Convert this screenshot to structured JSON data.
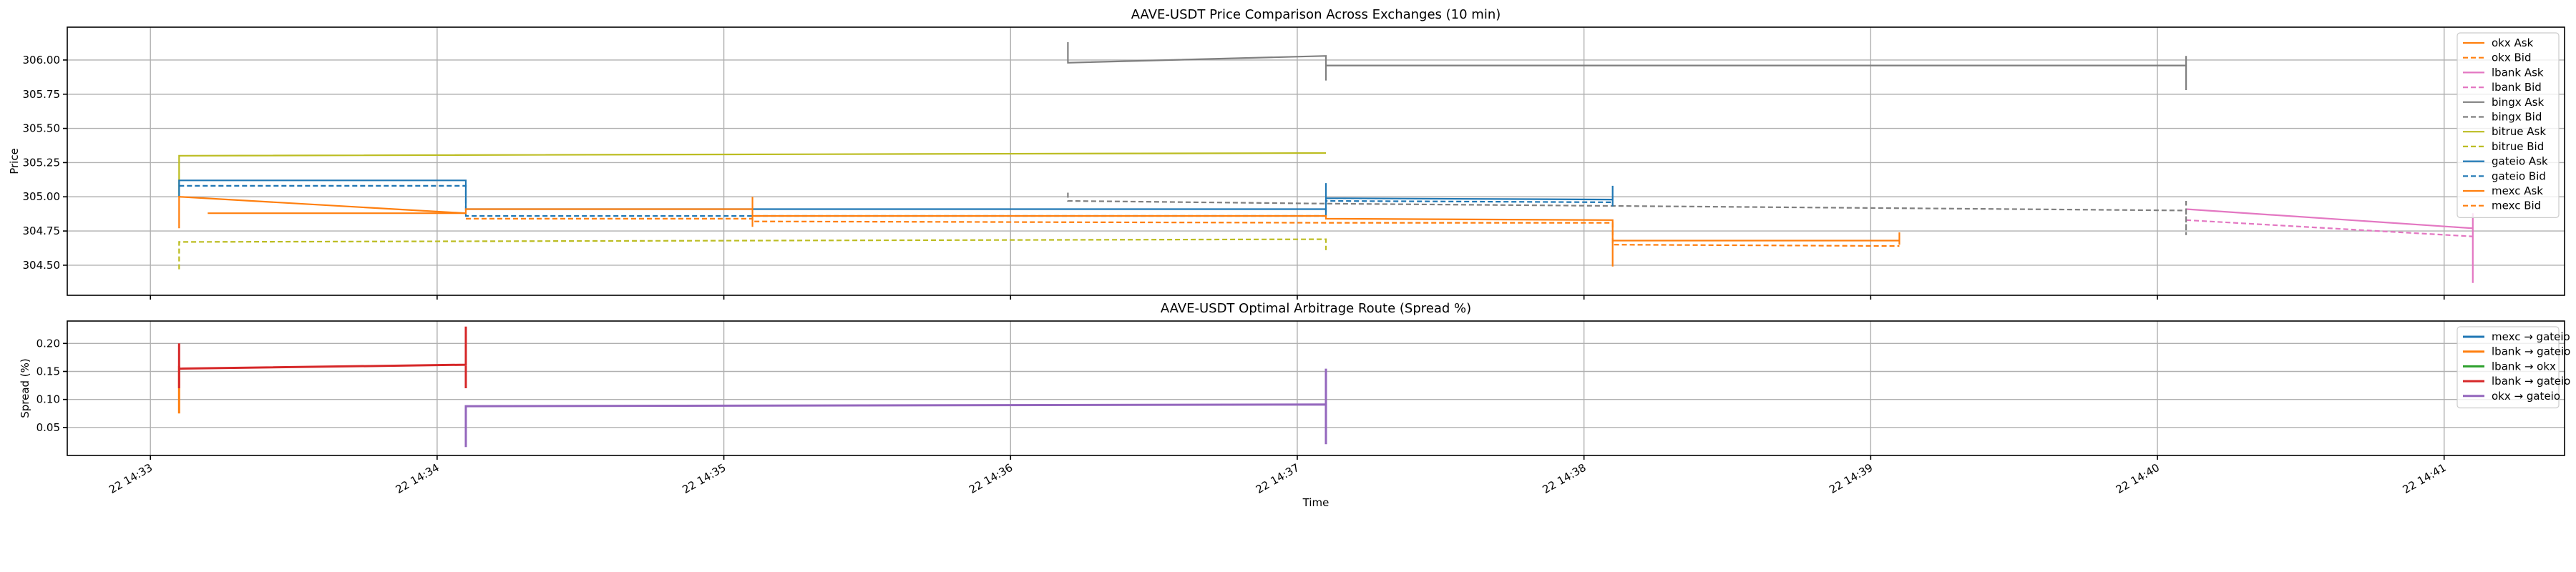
{
  "chart_data": [
    {
      "type": "line",
      "title": "AAVE-USDT Price Comparison Across Exchanges (10 min)",
      "xlabel": "",
      "ylabel": "Price",
      "ylim": [
        304.28,
        306.24
      ],
      "yticks": [
        "304.50",
        "304.75",
        "305.00",
        "305.25",
        "305.50",
        "305.75",
        "306.00"
      ],
      "grid": true,
      "legend": "upper right",
      "series": [
        {
          "name": "okx Ask",
          "color": "#ff7f0e",
          "dash": false,
          "points": [
            [
              0.1,
              304.88
            ],
            [
              1.0,
              304.88
            ]
          ]
        },
        {
          "name": "okx Bid",
          "color": "#ff7f0e",
          "dash": true,
          "points": []
        },
        {
          "name": "lbank Ask",
          "color": "#e377c2",
          "dash": false,
          "points": [
            [
              7.0,
              304.91
            ],
            [
              8.0,
              304.77
            ],
            [
              8.0,
              304.37
            ],
            [
              8.0,
              304.88
            ]
          ]
        },
        {
          "name": "lbank Bid",
          "color": "#e377c2",
          "dash": true,
          "points": [
            [
              7.0,
              304.83
            ],
            [
              8.0,
              304.71
            ]
          ]
        },
        {
          "name": "bingx Ask",
          "color": "#7f7f7f",
          "dash": false,
          "points": [
            [
              3.1,
              306.13
            ],
            [
              3.1,
              305.98
            ],
            [
              4.0,
              306.03
            ],
            [
              4.0,
              305.85
            ],
            [
              4.0,
              305.96
            ],
            [
              7.0,
              305.96
            ],
            [
              7.0,
              305.78
            ],
            [
              7.0,
              306.03
            ]
          ]
        },
        {
          "name": "bingx Bid",
          "color": "#7f7f7f",
          "dash": true,
          "points": [
            [
              3.1,
              305.03
            ],
            [
              3.1,
              304.97
            ],
            [
              4.0,
              304.95
            ],
            [
              7.0,
              304.9
            ],
            [
              7.0,
              304.72
            ],
            [
              7.0,
              304.97
            ]
          ]
        },
        {
          "name": "bitrue Ask",
          "color": "#bcbd22",
          "dash": false,
          "points": [
            [
              0.0,
              305.0
            ],
            [
              0.0,
              305.3
            ],
            [
              4.0,
              305.32
            ]
          ]
        },
        {
          "name": "bitrue Bid",
          "color": "#bcbd22",
          "dash": true,
          "points": [
            [
              0.0,
              304.47
            ],
            [
              0.0,
              304.67
            ],
            [
              4.0,
              304.69
            ],
            [
              4.0,
              304.61
            ]
          ]
        },
        {
          "name": "gateio Ask",
          "color": "#1f77b4",
          "dash": false,
          "points": [
            [
              0.0,
              305.0
            ],
            [
              0.0,
              305.12
            ],
            [
              1.0,
              305.12
            ],
            [
              1.0,
              304.91
            ],
            [
              4.0,
              304.91
            ],
            [
              4.0,
              304.86
            ],
            [
              4.0,
              305.1
            ],
            [
              4.0,
              304.99
            ],
            [
              5.0,
              304.98
            ],
            [
              5.0,
              305.08
            ],
            [
              5.0,
              304.93
            ]
          ]
        },
        {
          "name": "gateio Bid",
          "color": "#1f77b4",
          "dash": true,
          "points": [
            [
              0.0,
              305.08
            ],
            [
              1.0,
              305.08
            ],
            [
              1.0,
              304.86
            ],
            [
              4.0,
              304.86
            ],
            [
              4.0,
              304.97
            ],
            [
              5.0,
              304.96
            ]
          ]
        },
        {
          "name": "mexc Ask",
          "color": "#ff7f0e",
          "dash": false,
          "points": [
            [
              0.0,
              304.77
            ],
            [
              0.0,
              305.0
            ],
            [
              1.0,
              304.88
            ],
            [
              1.0,
              304.91
            ],
            [
              2.0,
              304.91
            ],
            [
              2.0,
              305.0
            ],
            [
              2.0,
              304.78
            ],
            [
              2.0,
              304.86
            ],
            [
              4.0,
              304.86
            ],
            [
              4.0,
              304.84
            ],
            [
              5.0,
              304.83
            ],
            [
              5.0,
              304.49
            ],
            [
              5.0,
              304.68
            ],
            [
              6.0,
              304.68
            ],
            [
              6.0,
              304.74
            ],
            [
              6.0,
              304.65
            ]
          ]
        },
        {
          "name": "mexc Bid",
          "color": "#ff7f0e",
          "dash": true,
          "points": [
            [
              1.0,
              304.84
            ],
            [
              2.0,
              304.84
            ],
            [
              2.0,
              304.82
            ],
            [
              4.0,
              304.81
            ],
            [
              5.0,
              304.81
            ],
            [
              5.0,
              304.65
            ],
            [
              6.0,
              304.64
            ]
          ]
        }
      ]
    },
    {
      "type": "line",
      "title": "AAVE-USDT Optimal Arbitrage Route (Spread %)",
      "xlabel": "Time",
      "ylabel": "Spread (%)",
      "ylim": [
        0.0,
        0.24
      ],
      "yticks": [
        "0.05",
        "0.10",
        "0.15",
        "0.20"
      ],
      "grid": true,
      "legend": "upper right",
      "series": [
        {
          "name": "mexc → gateio",
          "color": "#1f77b4",
          "dash": false,
          "points": []
        },
        {
          "name": "lbank → gateio",
          "color": "#ff7f0e",
          "dash": false,
          "points": [
            [
              0.0,
              0.075
            ],
            [
              0.0,
              0.16
            ]
          ]
        },
        {
          "name": "lbank → okx",
          "color": "#2ca02c",
          "dash": false,
          "points": []
        },
        {
          "name": "lbank → gateio",
          "color": "#d62728",
          "dash": false,
          "points": [
            [
              0.0,
              0.12
            ],
            [
              0.0,
              0.2
            ],
            [
              0.0,
              0.155
            ],
            [
              1.0,
              0.162
            ],
            [
              1.0,
              0.23
            ],
            [
              1.0,
              0.12
            ]
          ]
        },
        {
          "name": "okx → gateio",
          "color": "#9467bd",
          "dash": false,
          "points": [
            [
              1.0,
              0.015
            ],
            [
              1.0,
              0.088
            ],
            [
              4.0,
              0.091
            ],
            [
              4.0,
              0.02
            ],
            [
              4.0,
              0.155
            ]
          ]
        }
      ]
    }
  ],
  "x_axis": {
    "label": "Time",
    "min": -0.39,
    "max": 8.32,
    "ticks": [
      {
        "t": -0.1,
        "label": "22 14:33"
      },
      {
        "t": 0.9,
        "label": "22 14:34"
      },
      {
        "t": 1.9,
        "label": "22 14:35"
      },
      {
        "t": 2.9,
        "label": "22 14:36"
      },
      {
        "t": 3.9,
        "label": "22 14:37"
      },
      {
        "t": 4.9,
        "label": "22 14:38"
      },
      {
        "t": 5.9,
        "label": "22 14:39"
      },
      {
        "t": 6.9,
        "label": "22 14:40"
      },
      {
        "t": 7.9,
        "label": "22 14:41"
      }
    ]
  }
}
